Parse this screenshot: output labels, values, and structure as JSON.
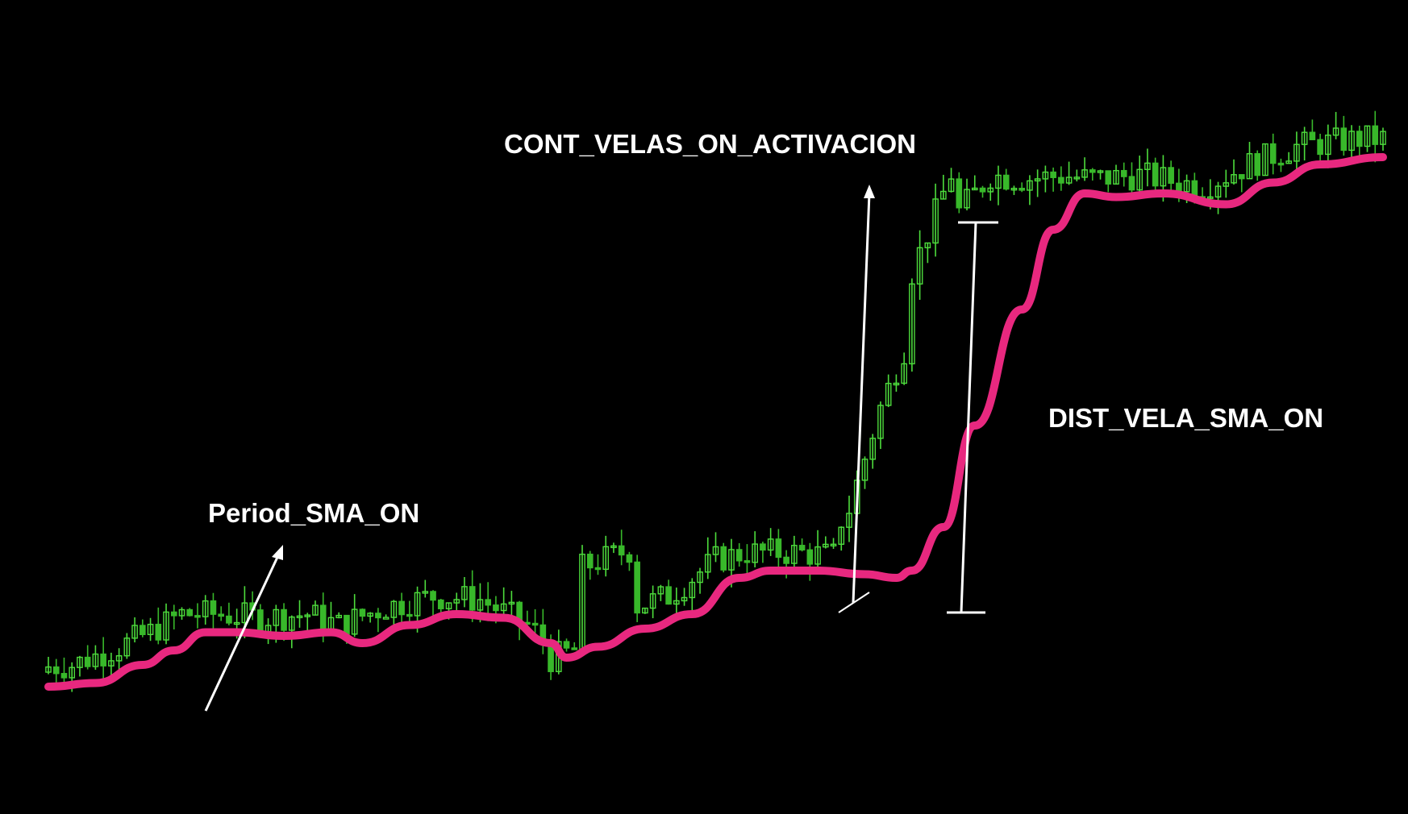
{
  "chart_data": {
    "type": "candlestick",
    "colors": {
      "background": "#000000",
      "candle_up": "#4ddc3c",
      "candle_down": "#38b82a",
      "sma_line": "#e8287f",
      "annotation": "#ffffff"
    },
    "ylim": [
      0,
      100
    ],
    "sma": {
      "name": "",
      "values": [
        [
          0,
          12
        ],
        [
          6,
          12.5
        ],
        [
          12,
          15
        ],
        [
          16,
          17
        ],
        [
          20,
          19.5
        ],
        [
          24,
          19.5
        ],
        [
          30,
          19
        ],
        [
          36,
          19.5
        ],
        [
          40,
          18
        ],
        [
          46,
          20.5
        ],
        [
          52,
          22
        ],
        [
          58,
          21.5
        ],
        [
          64,
          18
        ],
        [
          66,
          16
        ],
        [
          70,
          17.5
        ],
        [
          76,
          20
        ],
        [
          82,
          22
        ],
        [
          88,
          27
        ],
        [
          92,
          28
        ],
        [
          98,
          28
        ],
        [
          104,
          27.5
        ],
        [
          108,
          27
        ],
        [
          110,
          28
        ],
        [
          114,
          34
        ],
        [
          118,
          48
        ],
        [
          124,
          64
        ],
        [
          128,
          75
        ],
        [
          132,
          80
        ],
        [
          136,
          79.5
        ],
        [
          142,
          80
        ],
        [
          150,
          78.5
        ],
        [
          156,
          81.5
        ],
        [
          162,
          84
        ],
        [
          170,
          85
        ]
      ]
    },
    "candles_note": "",
    "annotations": [
      {
        "id": "period",
        "label": "Period_SMA_ON"
      },
      {
        "id": "cont",
        "label": "CONT_VELAS_ON_ACTIVACION"
      },
      {
        "id": "dist",
        "label": "DIST_VELA_SMA_ON"
      }
    ]
  }
}
